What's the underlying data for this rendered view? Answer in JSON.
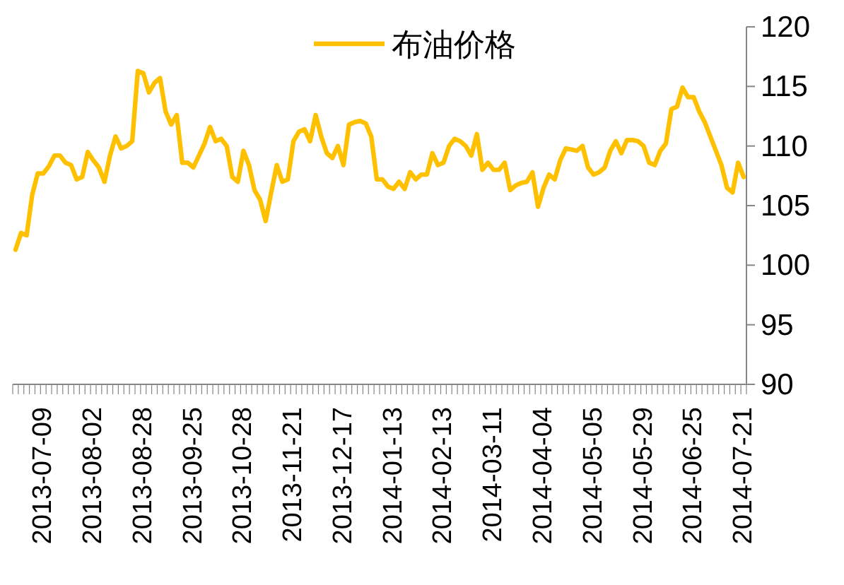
{
  "chart_data": {
    "type": "line",
    "legend": "top",
    "grid": false,
    "marker": "none",
    "line_style": "solid",
    "ylim": [
      90,
      120
    ],
    "yticks": [
      90,
      95,
      100,
      105,
      110,
      115,
      120
    ],
    "categories": [
      null,
      null,
      null,
      null,
      null,
      "2013-07-09",
      null,
      null,
      null,
      null,
      null,
      null,
      null,
      null,
      "2013-08-02",
      null,
      null,
      null,
      null,
      null,
      null,
      null,
      null,
      "2013-08-28",
      null,
      null,
      null,
      null,
      null,
      null,
      null,
      null,
      "2013-09-25",
      null,
      null,
      null,
      null,
      null,
      null,
      null,
      null,
      "2013-10-28",
      null,
      null,
      null,
      null,
      null,
      null,
      null,
      null,
      "2013-11-21",
      null,
      null,
      null,
      null,
      null,
      null,
      null,
      null,
      "2013-12-17",
      null,
      null,
      null,
      null,
      null,
      null,
      null,
      null,
      "2014-01-13",
      null,
      null,
      null,
      null,
      null,
      null,
      null,
      null,
      "2014-02-13",
      null,
      null,
      null,
      null,
      null,
      null,
      null,
      null,
      "2014-03-11",
      null,
      null,
      null,
      null,
      null,
      null,
      null,
      null,
      "2014-04-04",
      null,
      null,
      null,
      null,
      null,
      null,
      null,
      null,
      "2014-05-05",
      null,
      null,
      null,
      null,
      null,
      null,
      null,
      null,
      "2014-05-29",
      null,
      null,
      null,
      null,
      null,
      null,
      null,
      null,
      "2014-06-25",
      null,
      null,
      null,
      null,
      null,
      null,
      null,
      null,
      "2014-07-21"
    ],
    "series": [
      {
        "name": "布油价格",
        "color": "#ffc000",
        "values": [
          101.3,
          102.7,
          102.5,
          105.9,
          107.7,
          107.7,
          108.3,
          109.2,
          109.2,
          108.6,
          108.4,
          107.2,
          107.4,
          109.5,
          108.8,
          108.2,
          107,
          109.2,
          110.8,
          109.8,
          110,
          110.4,
          116.3,
          116.1,
          114.5,
          115.3,
          115.7,
          112.9,
          111.8,
          112.6,
          108.6,
          108.6,
          108.2,
          109.2,
          110.2,
          111.6,
          110.4,
          110.6,
          110,
          107.4,
          107,
          109.6,
          108.4,
          106.3,
          105.5,
          103.7,
          106.1,
          108.4,
          107,
          107.2,
          110.4,
          111.2,
          111.4,
          110.4,
          112.6,
          110.8,
          109.4,
          109,
          110,
          108.4,
          111.8,
          112,
          112.1,
          111.9,
          110.8,
          107.2,
          107.2,
          106.6,
          106.4,
          107,
          106.4,
          107.8,
          107.2,
          107.6,
          107.6,
          109.4,
          108.4,
          108.6,
          110,
          110.6,
          110.4,
          110,
          109.2,
          111,
          108,
          108.6,
          108,
          108,
          108.6,
          106.3,
          106.7,
          106.9,
          107,
          107.8,
          104.9,
          106.5,
          107.6,
          107.2,
          108.8,
          109.8,
          109.7,
          109.6,
          110,
          108.2,
          107.6,
          107.8,
          108.2,
          109.6,
          110.4,
          109.4,
          110.5,
          110.5,
          110.4,
          110,
          108.6,
          108.4,
          109.6,
          110.2,
          113.1,
          113.3,
          114.9,
          114.1,
          114.1,
          112.9,
          112,
          110.8,
          109.6,
          108.4,
          106.5,
          106.1,
          108.6,
          107.4
        ]
      }
    ]
  }
}
